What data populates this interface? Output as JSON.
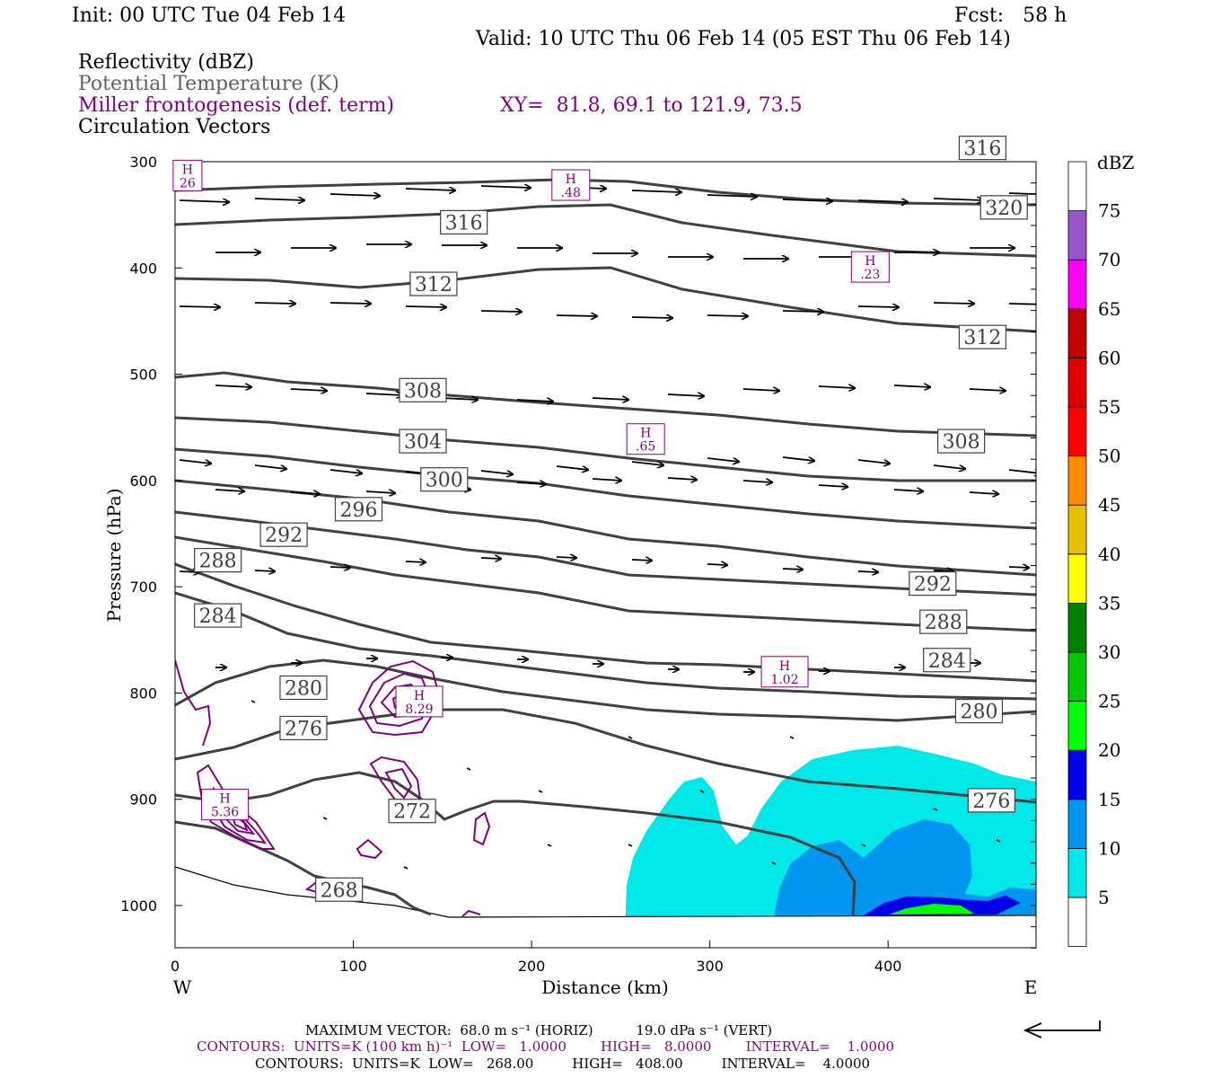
{
  "header": {
    "init": "Init: 00 UTC Tue 04 Feb 14",
    "fcst": "Fcst:   58 h",
    "valid": "Valid: 10 UTC Thu 06 Feb 14 (05 EST Thu 06 Feb 14)",
    "field1": "Reflectivity (dBZ)",
    "field2": "Potential Temperature (K)",
    "field3": "Miller frontogenesis (def. term)",
    "xy": "XY=  81.8, 69.1 to 121.9, 73.5",
    "field4": "Circulation Vectors"
  },
  "colors": {
    "theta": "#404040",
    "fronto": "#7f007f",
    "field2_text": "#606060"
  },
  "chart_data": {
    "type": "contour-cross-section",
    "xlabel": "Distance (km)",
    "ylabel": "Pressure (hPa)",
    "xlim": [
      0,
      483
    ],
    "ylim": [
      1040,
      300
    ],
    "x_ticks": [
      0,
      100,
      200,
      300,
      400
    ],
    "y_ticks": [
      300,
      400,
      500,
      600,
      700,
      800,
      900,
      1000
    ],
    "left_end_label": "W",
    "right_end_label": "E",
    "colorbar": {
      "title": "dBZ",
      "ticks": [
        "5",
        "10",
        "15",
        "20",
        "25",
        "30",
        "35",
        "40",
        "45",
        "50",
        "55",
        "60",
        "65",
        "70",
        "75"
      ],
      "colors": [
        "#ffffff",
        "#00e8e8",
        "#0096f0",
        "#0000e8",
        "#00ff00",
        "#00c800",
        "#008000",
        "#ffff00",
        "#e8c000",
        "#ff8c00",
        "#ff0000",
        "#e00000",
        "#c00000",
        "#ff00ff",
        "#9955c9",
        "#ffffff"
      ]
    },
    "theta_labels": [
      {
        "value": "320",
        "x": 465,
        "p": 343
      },
      {
        "value": "316",
        "x": 162,
        "p": 357
      },
      {
        "value": "316",
        "x": 453,
        "p": 287
      },
      {
        "value": "312",
        "x": 145,
        "p": 415
      },
      {
        "value": "312",
        "x": 453,
        "p": 465
      },
      {
        "value": "308",
        "x": 139,
        "p": 515
      },
      {
        "value": "308",
        "x": 441,
        "p": 563
      },
      {
        "value": "304",
        "x": 139,
        "p": 563
      },
      {
        "value": "300",
        "x": 151,
        "p": 599
      },
      {
        "value": "296",
        "x": 103,
        "p": 627
      },
      {
        "value": "292",
        "x": 61,
        "p": 651
      },
      {
        "value": "292",
        "x": 425,
        "p": 697
      },
      {
        "value": "288",
        "x": 24,
        "p": 675
      },
      {
        "value": "288",
        "x": 431,
        "p": 733
      },
      {
        "value": "284",
        "x": 24,
        "p": 727
      },
      {
        "value": "284",
        "x": 433,
        "p": 769
      },
      {
        "value": "280",
        "x": 72,
        "p": 795
      },
      {
        "value": "280",
        "x": 451,
        "p": 817
      },
      {
        "value": "276",
        "x": 72,
        "p": 833
      },
      {
        "value": "276",
        "x": 458,
        "p": 901
      },
      {
        "value": "272",
        "x": 133,
        "p": 911
      },
      {
        "value": "268",
        "x": 92,
        "p": 985
      }
    ],
    "fronto_maxima": [
      {
        "label": "H",
        "value": "26",
        "x": 7,
        "p": 313
      },
      {
        "label": "H",
        "value": ".48",
        "x": 222,
        "p": 322
      },
      {
        "label": "H",
        "value": ".23",
        "x": 390,
        "p": 399
      },
      {
        "label": "H",
        "value": ".65",
        "x": 264,
        "p": 561
      },
      {
        "label": "H",
        "value": "1.02",
        "x": 342,
        "p": 780
      },
      {
        "label": "H",
        "value": "8.29",
        "x": 137,
        "p": 808
      },
      {
        "label": "H",
        "value": "5.36",
        "x": 28,
        "p": 905
      }
    ]
  },
  "footer": {
    "max_vector": "MAXIMUM VECTOR:  68.0 m s⁻¹ (HORIZ)          19.0 dPa s⁻¹ (VERT)",
    "contours_fronto": "CONTOURS:  UNITS=K (100 km h)⁻¹  LOW=   1.0000        HIGH=   8.0000        INTERVAL=    1.0000",
    "contours_theta": "CONTOURS:  UNITS=K  LOW=   268.00         HIGH=   408.00         INTERVAL=    4.0000"
  }
}
